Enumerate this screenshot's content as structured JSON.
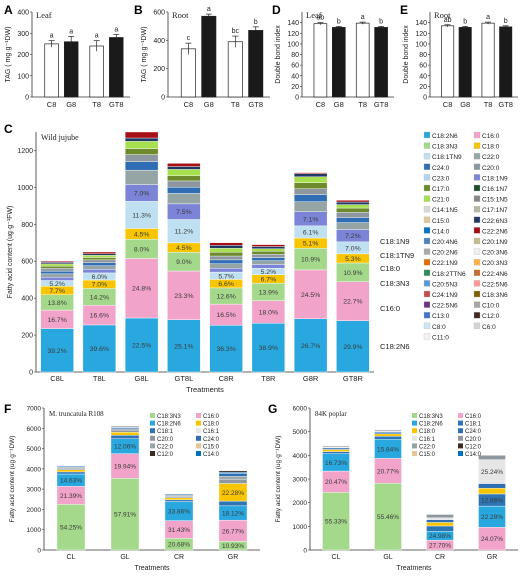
{
  "colors": {
    "C18:2N6": "#29a8e0",
    "C16:0": "#f2a3c9",
    "C18:3N3": "#a4d98b",
    "C18:0": "#f8c500",
    "C18:1TN9": "#bfe0f0",
    "C22:0": "#95a5a6",
    "C24:0": "#2f6eb5",
    "C20:0": "#8e97a0",
    "C23:0": "#b3d3ee",
    "C18:1N9": "#7b84d6",
    "C17:0": "#6d8a2c",
    "C16:1N7": "#1f4d2c",
    "C21:0": "#a6e04f",
    "C15:1N5": "#888888",
    "C14:1N5": "#d9d9d9",
    "C17:1N7": "#b7b7a4",
    "C15:0": "#e3c69a",
    "C22:6N3": "#1f3864",
    "C14:0": "#0070c0",
    "C22:2N6": "#a50f15",
    "C20:4N6": "#4f81bd",
    "C20:1N9": "#bfbf8a",
    "C20:2N6": "#a9a9a9",
    "C20:3N6": "#eeeeee",
    "C22:1N9": "#e36c09",
    "C20:3N3": "#ffb347",
    "C18:2TTN6": "#2e8b57",
    "C22:4N6": "#c76b2f",
    "C20:5N3": "#5b9bd5",
    "C22:5N6": "#ff9999",
    "C24:1N9": "#c0504d",
    "C18:3N6": "#7f6000",
    "C22:5N6b": "#6c3483",
    "C10:0": "#a6a6a6",
    "C13:0": "#4472c4",
    "C12:0": "#3d2b1f",
    "C8:0": "#c9e7f5",
    "C6:0": "#d5d5d5",
    "C11:0": "#f2f2f2",
    "C18:1": "#2e75b6",
    "C16:1": "#e7e6e6",
    "C20:0b": "#8e97a0",
    "C15:0b": "#e3c69a"
  },
  "panel_letters": [
    "A",
    "B",
    "C",
    "D",
    "E",
    "F",
    "G"
  ],
  "panels": {
    "A": {
      "title": "Leaf",
      "ylabel": "TAG ( mg·g⁻¹DW)",
      "yticks": [
        "0",
        "100",
        "200",
        "300",
        "400"
      ],
      "ylim": [
        0,
        400
      ],
      "categories": [
        "C8",
        "G8",
        "T8",
        "GT8"
      ],
      "values": [
        250,
        260,
        240,
        280
      ],
      "errors": [
        15,
        25,
        25,
        15
      ],
      "fills": [
        "#ffffff",
        "#1a1a1a",
        "#ffffff",
        "#1a1a1a"
      ],
      "letters": [
        "a",
        "a",
        "a",
        "a"
      ]
    },
    "B": {
      "title": "Root",
      "ylabel": "TAG ( mg·g⁻¹DW)",
      "yticks": [
        "0",
        "200",
        "400",
        "600"
      ],
      "ylim": [
        0,
        600
      ],
      "categories": [
        "C8",
        "G8",
        "T8",
        "GT8"
      ],
      "values": [
        340,
        570,
        390,
        470
      ],
      "errors": [
        40,
        15,
        40,
        25
      ],
      "fills": [
        "#ffffff",
        "#1a1a1a",
        "#ffffff",
        "#1a1a1a"
      ],
      "letters": [
        "c",
        "a",
        "bc",
        "b"
      ]
    },
    "D": {
      "title": "Leaf",
      "ylabel": "Double bond index",
      "yticks": [
        "0",
        "20",
        "40",
        "60",
        "80",
        "100",
        "120",
        "140"
      ],
      "ylim": [
        0,
        160
      ],
      "categories": [
        "C8",
        "G8",
        "T8",
        "GT8"
      ],
      "values": [
        138,
        131,
        139,
        131
      ],
      "errors": [
        2,
        2,
        2,
        2
      ],
      "fills": [
        "#ffffff",
        "#1a1a1a",
        "#ffffff",
        "#1a1a1a"
      ],
      "letters": [
        "ab",
        "b",
        "a",
        "b"
      ]
    },
    "E": {
      "title": "Root",
      "ylabel": "Double bond index",
      "yticks": [
        "0",
        "20",
        "40",
        "60",
        "80",
        "100",
        "120",
        "140"
      ],
      "ylim": [
        0,
        160
      ],
      "categories": [
        "C8",
        "G8",
        "T8",
        "GT8"
      ],
      "values": [
        134,
        131,
        139,
        132
      ],
      "errors": [
        2,
        2,
        2,
        2
      ],
      "fills": [
        "#ffffff",
        "#1a1a1a",
        "#ffffff",
        "#1a1a1a"
      ],
      "letters": [
        "ab",
        "b",
        "a",
        "b"
      ]
    }
  },
  "panel_C": {
    "title": "Wild jujube",
    "ylabel": "Fatty acid content (ug·g⁻¹FW)",
    "xlabel": "Treatments",
    "yticks": [
      "0",
      "200",
      "400",
      "600",
      "800",
      "1000",
      "1200"
    ],
    "ylim": [
      0,
      1300
    ],
    "categories": [
      "C8L",
      "T8L",
      "G8L",
      "GT8L",
      "C8R",
      "T8R",
      "G8R",
      "GT8R"
    ],
    "totals": [
      600,
      650,
      1300,
      1130,
      700,
      690,
      1080,
      930
    ],
    "segments": [
      {
        "name": "C18:2N6",
        "values": [
          39.2,
          39.6,
          22.5,
          25.1,
          36.3,
          38.9,
          26.7,
          29.9
        ],
        "labels": [
          "39.2%",
          "39.6%",
          "22.5%",
          "25.1%",
          "36.3%",
          "38.9%",
          "26.7%",
          "29.9%"
        ]
      },
      {
        "name": "C16:0",
        "values": [
          16.7,
          16.6,
          24.8,
          23.3,
          16.5,
          18.0,
          24.5,
          22.7
        ],
        "labels": [
          "16.7%",
          "16.6%",
          "24.8%",
          "23.3%",
          "16.5%",
          "18.0%",
          "24.5%",
          "22.7%"
        ]
      },
      {
        "name": "C18:3N3",
        "values": [
          13.8,
          14.2,
          8.0,
          9.0,
          12.6,
          13.9,
          10.9,
          10.9
        ],
        "labels": [
          "13.8%",
          "14.2%",
          "8.0%",
          "9.0%",
          "12.6%",
          "13.9%",
          "10.9%",
          "10.9%"
        ]
      },
      {
        "name": "C18:0",
        "values": [
          7.7,
          7.0,
          4.5,
          4.5,
          6.6,
          6.7,
          5.1,
          5.3
        ],
        "labels": [
          "7.7%",
          "7.0%",
          "4.5%",
          "4.5%",
          "6.6%",
          "6.7%",
          "5.1%",
          "5.3%"
        ]
      },
      {
        "name": "C18:1TN9",
        "values": [
          5.2,
          6.0,
          11.3,
          11.2,
          5.7,
          5.2,
          6.1,
          7.0
        ],
        "labels": [
          "5.2%",
          "6.0%",
          "11.3%",
          "11.2%",
          "5.7%",
          "5.2%",
          "6.1%",
          "7.0%"
        ]
      },
      {
        "name": "C18:1N9",
        "values": [
          3.0,
          3.0,
          7.0,
          7.5,
          3.0,
          3.0,
          7.1,
          7.2
        ],
        "labels": [
          "",
          "",
          "7.0%",
          "7.5%",
          "",
          "",
          "7.1%",
          "7.2%"
        ]
      },
      {
        "name": "C22:0",
        "values": [
          3.0,
          3.0,
          6.0,
          5.0,
          3.5,
          3.0,
          5.0,
          4.0
        ],
        "labels": [
          "",
          "",
          "",
          "",
          "",
          "",
          "",
          ""
        ]
      },
      {
        "name": "C24:0",
        "values": [
          2.5,
          2.5,
          3.5,
          3.0,
          3.0,
          2.5,
          3.5,
          3.0
        ],
        "labels": [
          "",
          "",
          "",
          "",
          "",
          "",
          "",
          ""
        ]
      },
      {
        "name": "C20:0",
        "values": [
          2.5,
          2.5,
          3.0,
          3.0,
          3.0,
          2.5,
          3.0,
          3.0
        ],
        "labels": [
          "",
          "",
          "",
          "",
          "",
          "",
          "",
          ""
        ]
      },
      {
        "name": "C17:0",
        "values": [
          2.0,
          2.0,
          2.5,
          2.5,
          3.0,
          2.5,
          3.0,
          2.5
        ],
        "labels": [
          "",
          "",
          "",
          "",
          "",
          "",
          "",
          ""
        ]
      },
      {
        "name": "C21:0",
        "values": [
          2.0,
          1.8,
          3.0,
          3.0,
          3.0,
          2.0,
          3.0,
          2.0
        ],
        "labels": [
          "",
          "",
          "",
          "",
          "",
          "",
          "",
          ""
        ]
      },
      {
        "name": "C22:6N3",
        "values": [
          1.4,
          1.3,
          1.4,
          1.4,
          2.3,
          1.8,
          1.6,
          1.5
        ],
        "labels": [
          "",
          "",
          "",
          "",
          "",
          "",
          "",
          ""
        ]
      },
      {
        "name": "C22:2N6",
        "values": [
          1.0,
          1.5,
          2.5,
          1.5,
          2.0,
          1.5,
          0.5,
          1.0
        ],
        "labels": [
          "",
          "",
          "",
          "",
          "",
          "",
          "",
          ""
        ]
      }
    ],
    "right_labels": [
      "C18:1N9",
      "C18:1TN9",
      "C18:0",
      "C18:3N3",
      "C16:0",
      "C18:2N6"
    ],
    "legend": [
      "C18:2N6",
      "C16:0",
      "C18:3N3",
      "C18:0",
      "C18:1TN9",
      "C22:0",
      "C24:0",
      "C20:0",
      "C23:0",
      "C18:1N9",
      "C17:0",
      "C16:1N7",
      "C21:0",
      "C15:1N5",
      "C14:1N5",
      "C17:1N7",
      "C15:0",
      "C22:6N3",
      "C14:0",
      "C22:2N6",
      "C20:4N6",
      "C20:1N9",
      "C20:2N6",
      "C20:3N6",
      "C22:1N9",
      "C20:3N3",
      "C18:2TTN6",
      "C22:4N6",
      "C20:5N3",
      "C22:5N6",
      "C24:1N9",
      "C18:3N6",
      "C22:5N6",
      "C10:0",
      "C13:0",
      "C12:0",
      "C8:0",
      "C6:0",
      "C11:0"
    ],
    "legend_colors": [
      "C18:2N6",
      "C16:0",
      "C18:3N3",
      "C18:0",
      "C18:1TN9",
      "C22:0",
      "C24:0",
      "C20:0",
      "C23:0",
      "C18:1N9",
      "C17:0",
      "C16:1N7",
      "C21:0",
      "C15:1N5",
      "C14:1N5",
      "C17:1N7",
      "C15:0",
      "C22:6N3",
      "C14:0",
      "C22:2N6",
      "C20:4N6",
      "C20:1N9",
      "C20:2N6",
      "C20:3N6",
      "C22:1N9",
      "C20:3N3",
      "C18:2TTN6",
      "C22:4N6",
      "C20:5N3",
      "C22:5N6",
      "C24:1N9",
      "C18:3N6",
      "C22:5N6b",
      "C10:0",
      "C13:0",
      "C12:0",
      "C8:0",
      "C6:0",
      "C11:0"
    ]
  },
  "panel_F": {
    "title": "M. truncatula R108",
    "ylabel": "Fatty acid content (ug·g⁻¹DW)",
    "xlabel": "Treatments",
    "yticks": [
      "0",
      "1000",
      "2000",
      "3000",
      "4000",
      "5000",
      "6000",
      "7000"
    ],
    "ylim": [
      0,
      7000
    ],
    "categories": [
      "CL",
      "GL",
      "CR",
      "GR"
    ],
    "totals": [
      4150,
      6100,
      2780,
      3900
    ],
    "segments": [
      {
        "name": "C18:3N3",
        "values": [
          54.25,
          57.91,
          20.68,
          10.93
        ],
        "labels": [
          "54.25%",
          "57.91%",
          "20.68%",
          "10.93%"
        ]
      },
      {
        "name": "C16:0",
        "values": [
          21.39,
          19.94,
          31.43,
          26.77
        ],
        "labels": [
          "21.39%",
          "19.94%",
          "31.43%",
          "26.77%"
        ]
      },
      {
        "name": "C18:2N6",
        "values": [
          14.63,
          12.06,
          33.86,
          18.12
        ],
        "labels": [
          "14.63%",
          "12.06%",
          "33.86%",
          "18.12%"
        ]
      },
      {
        "name": "C18:1",
        "values": [
          2.5,
          2.8,
          3.0,
          6.0
        ],
        "labels": [
          "",
          "",
          "",
          ""
        ]
      },
      {
        "name": "C18:0",
        "values": [
          2.5,
          2.5,
          3.5,
          22.28
        ],
        "labels": [
          "",
          "",
          "",
          "22.28%"
        ]
      },
      {
        "name": "C20:0",
        "values": [
          1.8,
          1.7,
          2.5,
          5.5
        ],
        "labels": [
          "",
          "",
          "",
          ""
        ]
      },
      {
        "name": "C22:0",
        "values": [
          1.2,
          1.0,
          2.0,
          3.5
        ],
        "labels": [
          "",
          "",
          "",
          ""
        ]
      },
      {
        "name": "C24:0",
        "values": [
          1.0,
          1.0,
          1.8,
          3.5
        ],
        "labels": [
          "",
          "",
          "",
          ""
        ]
      },
      {
        "name": "C14:0",
        "values": [
          0.73,
          0.5,
          0.73,
          1.5
        ],
        "labels": [
          "",
          "",
          "",
          ""
        ]
      },
      {
        "name": "C12:0",
        "values": [
          0.0,
          0.59,
          0.5,
          1.91
        ],
        "labels": [
          "",
          "",
          "",
          ""
        ]
      }
    ],
    "legend": [
      "C18:3N3",
      "C16:0",
      "C18:2N6",
      "C18:0",
      "C18:1",
      "C16:1",
      "C20:0",
      "C24:0",
      "C22:0",
      "C15:0",
      "C12:0",
      "C14:0"
    ],
    "legend_colors": [
      "C18:3N3",
      "C16:0",
      "C18:2N6",
      "C18:0",
      "C18:1",
      "C16:1",
      "C20:0",
      "C24:0",
      "C22:0",
      "C15:0",
      "C12:0",
      "C14:0"
    ]
  },
  "panel_G": {
    "title": "84K poplar",
    "ylabel": "Fatty acid content (ug·g⁻¹DW)",
    "xlabel": "Treatments",
    "yticks": [
      "0",
      "1000",
      "2000",
      "3000",
      "4000",
      "5000",
      "6000"
    ],
    "ylim": [
      0,
      6000
    ],
    "categories": [
      "CL",
      "GL",
      "CR",
      "GR"
    ],
    "totals": [
      4400,
      5080,
      1500,
      4000
    ],
    "segments": [
      {
        "name": "C18:3N3",
        "values": [
          55.33,
          55.46,
          0.0,
          0.0
        ],
        "labels": [
          "55.33%",
          "55.46%",
          "",
          ""
        ]
      },
      {
        "name": "C16:0",
        "values": [
          20.47,
          20.77,
          27.7,
          24.07
        ],
        "labels": [
          "20.47%",
          "20.77%",
          "27.70%",
          "24.07%"
        ]
      },
      {
        "name": "C18:2N6",
        "values": [
          16.73,
          15.84,
          24.98,
          22.28
        ],
        "labels": [
          "16.73%",
          "15.84%",
          "24.98%",
          "22.28%"
        ]
      },
      {
        "name": "C18:1",
        "values": [
          2.0,
          2.5,
          15.0,
          12.86
        ],
        "labels": [
          "",
          "",
          "",
          "12.86%"
        ]
      },
      {
        "name": "C18:0",
        "values": [
          2.0,
          2.0,
          10.0,
          6.0
        ],
        "labels": [
          "",
          "",
          "",
          ""
        ]
      },
      {
        "name": "C24:0",
        "values": [
          1.5,
          1.5,
          8.0,
          5.0
        ],
        "labels": [
          "",
          "",
          "",
          ""
        ]
      },
      {
        "name": "C16:1",
        "values": [
          1.0,
          1.0,
          5.0,
          25.24
        ],
        "labels": [
          "",
          "",
          "",
          "25.24%"
        ]
      },
      {
        "name": "C20:0",
        "values": [
          0.97,
          0.92,
          9.32,
          4.55
        ],
        "labels": [
          "",
          "",
          "",
          ""
        ]
      }
    ],
    "legend": [
      "C18:3N3",
      "C16:0",
      "C18:2N6",
      "C18:1",
      "C18:0",
      "C24:0",
      "C16:1",
      "C20:0",
      "C22:0",
      "C12:0",
      "C15:0",
      "C14:0"
    ],
    "legend_colors": [
      "C18:3N3",
      "C16:0",
      "C18:2N6",
      "C18:1",
      "C18:0",
      "C24:0",
      "C16:1",
      "C20:0",
      "C22:0",
      "C12:0",
      "C15:0",
      "C14:0"
    ]
  }
}
